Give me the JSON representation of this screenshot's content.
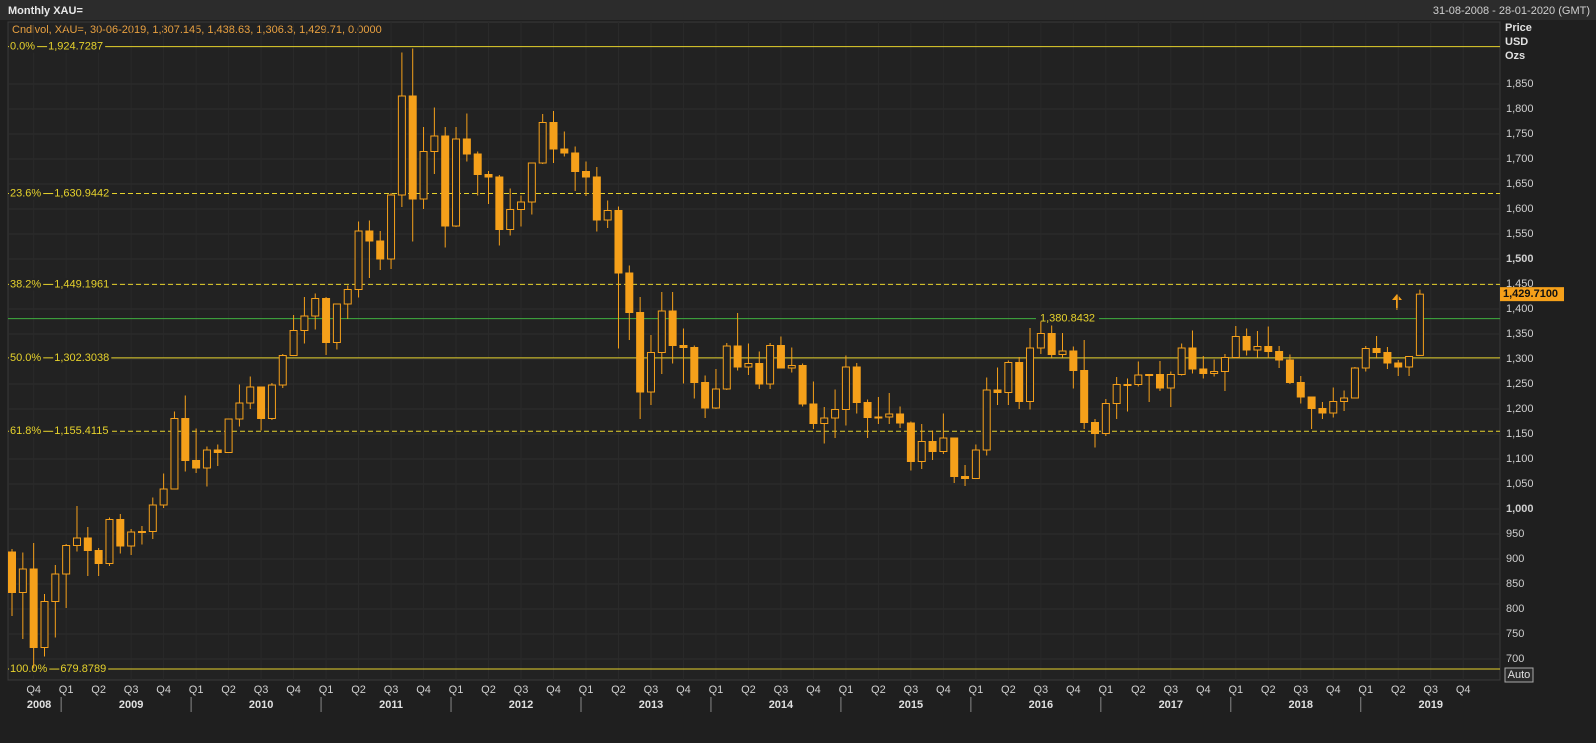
{
  "chart_data": {
    "type": "candlestick",
    "title": "Monthly XAU=",
    "date_range": "31-08-2008 - 28-01-2020 (GMT)",
    "legend": "Cndlvol, XAU=, 30-06-2019, 1,307.145, 1,438.63, 1,306.3, 1,429.71, 0.0000",
    "y_axis_label": [
      "Price",
      "USD",
      "Ozs"
    ],
    "auto_button": "Auto",
    "color": "#f5a01a",
    "ylim": [
      658,
      1974
    ],
    "yticks": [
      700,
      750,
      800,
      850,
      900,
      950,
      {
        "value": 1000,
        "label": "1,000"
      },
      {
        "value": 1050,
        "label": "1,050"
      },
      {
        "value": 1100,
        "label": "1,100"
      },
      {
        "value": 1150,
        "label": "1,150"
      },
      {
        "value": 1200,
        "label": "1,200"
      },
      {
        "value": 1250,
        "label": "1,250"
      },
      {
        "value": 1300,
        "label": "1,300"
      },
      {
        "value": 1350,
        "label": "1,350"
      },
      {
        "value": 1400,
        "label": "1,400"
      },
      {
        "value": 1450,
        "label": "1,450"
      },
      {
        "value": 1500,
        "label": "1,500"
      },
      {
        "value": 1550,
        "label": "1,550"
      },
      {
        "value": 1600,
        "label": "1,600"
      },
      {
        "value": 1650,
        "label": "1,650"
      },
      {
        "value": 1700,
        "label": "1,700"
      },
      {
        "value": 1750,
        "label": "1,750"
      },
      {
        "value": 1800,
        "label": "1,800"
      },
      {
        "value": 1850,
        "label": "1,850"
      }
    ],
    "grid": true,
    "quarters": [
      "Q4",
      "Q1",
      "Q2",
      "Q3",
      "Q4",
      "Q1",
      "Q2",
      "Q3",
      "Q4",
      "Q1",
      "Q2",
      "Q3",
      "Q4",
      "Q1",
      "Q2",
      "Q3",
      "Q4",
      "Q1",
      "Q2",
      "Q3",
      "Q4",
      "Q1",
      "Q2",
      "Q3",
      "Q4",
      "Q1",
      "Q2",
      "Q3",
      "Q4",
      "Q1",
      "Q2",
      "Q3",
      "Q4",
      "Q1",
      "Q2",
      "Q3",
      "Q4",
      "Q1",
      "Q2",
      "Q3",
      "Q4",
      "Q1",
      "Q2",
      "Q3",
      "Q4"
    ],
    "years": [
      "2008",
      "2009",
      "2010",
      "2011",
      "2012",
      "2013",
      "2014",
      "2015",
      "2016",
      "2017",
      "2018",
      "2019"
    ],
    "fib_levels": [
      {
        "label": "0.0%",
        "value": 1924.7287,
        "value_label": "1,924.7287",
        "dashed": false
      },
      {
        "label": "23.6%",
        "value": 1630.9442,
        "value_label": "1,630.9442",
        "dashed": true
      },
      {
        "label": "38.2%",
        "value": 1449.1961,
        "value_label": "1,449.1961",
        "dashed": true
      },
      {
        "label": "50.0%",
        "value": 1302.3038,
        "value_label": "1,302.3038",
        "dashed": false
      },
      {
        "label": "61.8%",
        "value": 1155.4115,
        "value_label": "1,155.4115",
        "dashed": true
      },
      {
        "label": "100.0%",
        "value": 679.8789,
        "value_label": "679.8789",
        "dashed": false
      }
    ],
    "fib_color": "#e6d22c",
    "reference_line": {
      "value": 1380.8432,
      "label": "1,380.8432",
      "color": "#3fae3f"
    },
    "last_price": {
      "value": 1429.71,
      "label": "1,429.7100"
    },
    "ohlc": [
      [
        914,
        920,
        786,
        833
      ],
      [
        833,
        913,
        740,
        880
      ],
      [
        880,
        932,
        681,
        723
      ],
      [
        723,
        830,
        705,
        815
      ],
      [
        815,
        888,
        743,
        870
      ],
      [
        870,
        930,
        802,
        927
      ],
      [
        927,
        1006,
        915,
        942
      ],
      [
        942,
        964,
        866,
        917
      ],
      [
        917,
        922,
        866,
        891
      ],
      [
        891,
        983,
        886,
        979
      ],
      [
        979,
        990,
        911,
        926
      ],
      [
        926,
        960,
        908,
        954
      ],
      [
        954,
        966,
        929,
        955
      ],
      [
        955,
        1023,
        940,
        1008
      ],
      [
        1008,
        1071,
        1002,
        1040
      ],
      [
        1040,
        1195,
        1039,
        1181
      ],
      [
        1181,
        1227,
        1075,
        1097
      ],
      [
        1097,
        1161,
        1072,
        1082
      ],
      [
        1082,
        1125,
        1045,
        1118
      ],
      [
        1118,
        1129,
        1086,
        1113
      ],
      [
        1113,
        1180,
        1112,
        1180
      ],
      [
        1180,
        1249,
        1165,
        1212
      ],
      [
        1212,
        1265,
        1200,
        1244
      ],
      [
        1244,
        1245,
        1157,
        1181
      ],
      [
        1181,
        1252,
        1178,
        1248
      ],
      [
        1248,
        1310,
        1242,
        1307
      ],
      [
        1307,
        1388,
        1310,
        1357
      ],
      [
        1357,
        1424,
        1331,
        1386
      ],
      [
        1386,
        1431,
        1359,
        1421
      ],
      [
        1421,
        1424,
        1308,
        1333
      ],
      [
        1333,
        1411,
        1319,
        1410
      ],
      [
        1410,
        1447,
        1380,
        1439
      ],
      [
        1439,
        1575,
        1423,
        1556
      ],
      [
        1556,
        1577,
        1462,
        1536
      ],
      [
        1536,
        1556,
        1478,
        1500
      ],
      [
        1500,
        1632,
        1480,
        1628
      ],
      [
        1628,
        1913,
        1604,
        1826
      ],
      [
        1826,
        1921,
        1535,
        1620
      ],
      [
        1620,
        1764,
        1600,
        1715
      ],
      [
        1715,
        1803,
        1670,
        1746
      ],
      [
        1746,
        1764,
        1523,
        1566
      ],
      [
        1566,
        1764,
        1564,
        1740
      ],
      [
        1740,
        1791,
        1695,
        1710
      ],
      [
        1710,
        1715,
        1627,
        1669
      ],
      [
        1669,
        1676,
        1610,
        1664
      ],
      [
        1664,
        1668,
        1527,
        1559
      ],
      [
        1559,
        1641,
        1547,
        1599
      ],
      [
        1599,
        1627,
        1565,
        1614
      ],
      [
        1614,
        1692,
        1589,
        1692
      ],
      [
        1692,
        1790,
        1690,
        1773
      ],
      [
        1773,
        1796,
        1692,
        1720
      ],
      [
        1720,
        1755,
        1705,
        1712
      ],
      [
        1712,
        1725,
        1636,
        1675
      ],
      [
        1675,
        1695,
        1626,
        1664
      ],
      [
        1664,
        1684,
        1555,
        1578
      ],
      [
        1578,
        1617,
        1562,
        1597
      ],
      [
        1597,
        1605,
        1321,
        1472
      ],
      [
        1472,
        1487,
        1338,
        1393
      ],
      [
        1393,
        1424,
        1180,
        1234
      ],
      [
        1234,
        1348,
        1208,
        1313
      ],
      [
        1313,
        1434,
        1270,
        1396
      ],
      [
        1396,
        1434,
        1291,
        1327
      ],
      [
        1327,
        1361,
        1251,
        1323
      ],
      [
        1323,
        1327,
        1221,
        1253
      ],
      [
        1253,
        1267,
        1182,
        1202
      ],
      [
        1202,
        1280,
        1200,
        1240
      ],
      [
        1240,
        1332,
        1238,
        1326
      ],
      [
        1326,
        1392,
        1277,
        1284
      ],
      [
        1284,
        1331,
        1268,
        1291
      ],
      [
        1291,
        1315,
        1240,
        1250
      ],
      [
        1250,
        1332,
        1240,
        1327
      ],
      [
        1327,
        1345,
        1281,
        1282
      ],
      [
        1282,
        1323,
        1273,
        1287
      ],
      [
        1287,
        1291,
        1205,
        1210
      ],
      [
        1210,
        1255,
        1160,
        1171
      ],
      [
        1171,
        1204,
        1131,
        1182
      ],
      [
        1182,
        1239,
        1142,
        1199
      ],
      [
        1199,
        1307,
        1167,
        1284
      ],
      [
        1284,
        1292,
        1191,
        1213
      ],
      [
        1213,
        1219,
        1142,
        1183
      ],
      [
        1183,
        1224,
        1170,
        1184
      ],
      [
        1184,
        1232,
        1170,
        1190
      ],
      [
        1190,
        1205,
        1162,
        1172
      ],
      [
        1172,
        1175,
        1077,
        1095
      ],
      [
        1095,
        1170,
        1080,
        1135
      ],
      [
        1135,
        1157,
        1098,
        1115
      ],
      [
        1115,
        1191,
        1110,
        1142
      ],
      [
        1142,
        1142,
        1052,
        1065
      ],
      [
        1065,
        1088,
        1046,
        1061
      ],
      [
        1061,
        1129,
        1062,
        1118
      ],
      [
        1118,
        1263,
        1107,
        1238
      ],
      [
        1238,
        1283,
        1208,
        1233
      ],
      [
        1233,
        1297,
        1208,
        1293
      ],
      [
        1293,
        1304,
        1200,
        1215
      ],
      [
        1215,
        1362,
        1199,
        1322
      ],
      [
        1322,
        1375,
        1310,
        1351
      ],
      [
        1351,
        1367,
        1301,
        1309
      ],
      [
        1309,
        1352,
        1302,
        1316
      ],
      [
        1316,
        1325,
        1241,
        1277
      ],
      [
        1277,
        1338,
        1160,
        1173
      ],
      [
        1173,
        1180,
        1123,
        1151
      ],
      [
        1151,
        1220,
        1146,
        1211
      ],
      [
        1211,
        1264,
        1180,
        1249
      ],
      [
        1249,
        1261,
        1195,
        1249
      ],
      [
        1249,
        1295,
        1245,
        1268
      ],
      [
        1268,
        1270,
        1214,
        1269
      ],
      [
        1269,
        1296,
        1236,
        1242
      ],
      [
        1242,
        1275,
        1204,
        1269
      ],
      [
        1269,
        1331,
        1267,
        1322
      ],
      [
        1322,
        1357,
        1271,
        1280
      ],
      [
        1280,
        1306,
        1261,
        1271
      ],
      [
        1271,
        1299,
        1265,
        1275
      ],
      [
        1275,
        1310,
        1236,
        1303
      ],
      [
        1303,
        1366,
        1302,
        1345
      ],
      [
        1345,
        1361,
        1307,
        1318
      ],
      [
        1318,
        1356,
        1303,
        1325
      ],
      [
        1325,
        1365,
        1302,
        1315
      ],
      [
        1315,
        1326,
        1282,
        1298
      ],
      [
        1298,
        1309,
        1250,
        1253
      ],
      [
        1253,
        1266,
        1211,
        1224
      ],
      [
        1224,
        1224,
        1160,
        1201
      ],
      [
        1201,
        1214,
        1180,
        1192
      ],
      [
        1192,
        1243,
        1183,
        1215
      ],
      [
        1215,
        1237,
        1196,
        1222
      ],
      [
        1222,
        1284,
        1221,
        1282
      ],
      [
        1282,
        1326,
        1275,
        1321
      ],
      [
        1321,
        1346,
        1301,
        1313
      ],
      [
        1313,
        1324,
        1280,
        1292
      ],
      [
        1292,
        1298,
        1266,
        1284
      ],
      [
        1284,
        1306,
        1266,
        1305
      ],
      [
        1307.145,
        1438.63,
        1306.3,
        1429.71
      ]
    ]
  }
}
